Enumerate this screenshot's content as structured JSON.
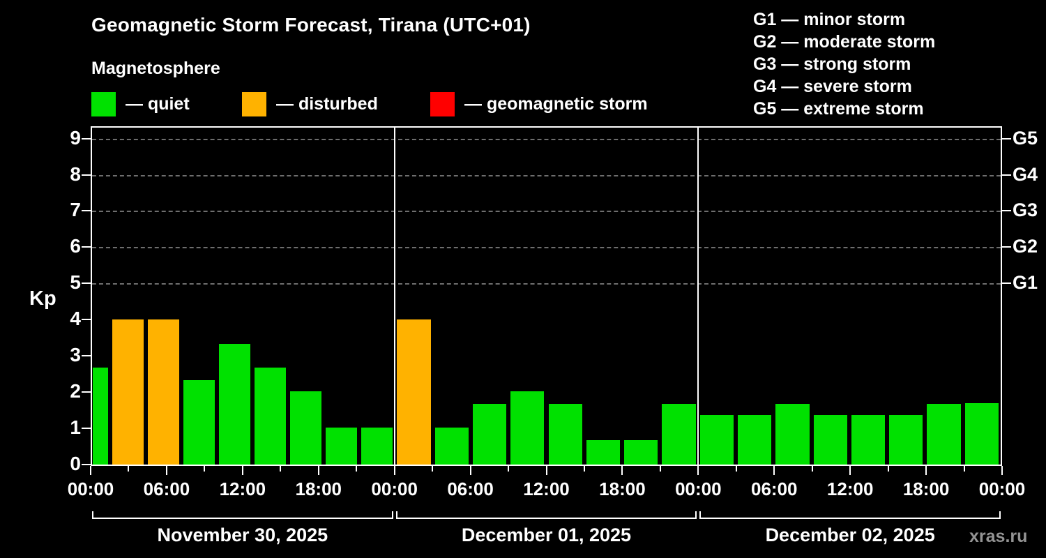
{
  "header": {
    "title": "Geomagnetic Storm Forecast, Tirana (UTC+01)",
    "subtitle": "Magnetosphere"
  },
  "legend": {
    "items": [
      {
        "name": "quiet",
        "label": "— quiet",
        "color": "#00e100"
      },
      {
        "name": "disturbed",
        "label": "— disturbed",
        "color": "#ffb200"
      },
      {
        "name": "storm",
        "label": "— geomagnetic storm",
        "color": "#ff0000"
      }
    ]
  },
  "g_scale_legend": {
    "items": [
      "G1 — minor storm",
      "G2 — moderate storm",
      "G3 — strong storm",
      "G4 — severe storm",
      "G5 — extreme storm"
    ]
  },
  "y_axis": {
    "label": "Kp",
    "ticks": [
      9,
      8,
      7,
      6,
      5,
      4,
      3,
      2,
      1,
      0
    ]
  },
  "right_axis": {
    "labels": [
      {
        "text": "G5",
        "kp": 9
      },
      {
        "text": "G4",
        "kp": 8
      },
      {
        "text": "G3",
        "kp": 7
      },
      {
        "text": "G2",
        "kp": 6
      },
      {
        "text": "G1",
        "kp": 5
      }
    ]
  },
  "x_axis": {
    "time_labels": [
      "00:00",
      "06:00",
      "12:00",
      "18:00",
      "00:00",
      "06:00",
      "12:00",
      "18:00",
      "00:00",
      "06:00",
      "12:00",
      "18:00",
      "00:00"
    ]
  },
  "watermark": "xras.ru",
  "chart_data": {
    "type": "bar",
    "title": "Geomagnetic Storm Forecast, Tirana (UTC+01)",
    "ylabel": "Kp",
    "ylim": [
      0,
      9.3
    ],
    "interval_hours": 3,
    "grid": "dashed horizontal at G-levels (Kp 5-9)",
    "colors": {
      "quiet": "#00e100",
      "disturbed": "#ffb200",
      "storm": "#ff0000"
    },
    "days": [
      {
        "date": "November 30, 2025",
        "first_bar_half_width": true,
        "kp": [
          2.67,
          4,
          4,
          2.33,
          3.33,
          2.67,
          2.03,
          1.03,
          1.03
        ],
        "status": [
          "quiet",
          "disturbed",
          "disturbed",
          "quiet",
          "quiet",
          "quiet",
          "quiet",
          "quiet",
          "quiet"
        ]
      },
      {
        "date": "December 01, 2025",
        "kp": [
          4,
          1.03,
          1.67,
          2.03,
          1.67,
          0.67,
          0.67,
          1.67
        ],
        "status": [
          "disturbed",
          "quiet",
          "quiet",
          "quiet",
          "quiet",
          "quiet",
          "quiet",
          "quiet"
        ]
      },
      {
        "date": "December 02, 2025",
        "kp": [
          1.37,
          1.37,
          1.67,
          1.37,
          1.37,
          1.37,
          1.67,
          1.7
        ],
        "status": [
          "quiet",
          "quiet",
          "quiet",
          "quiet",
          "quiet",
          "quiet",
          "quiet",
          "quiet"
        ]
      }
    ]
  }
}
